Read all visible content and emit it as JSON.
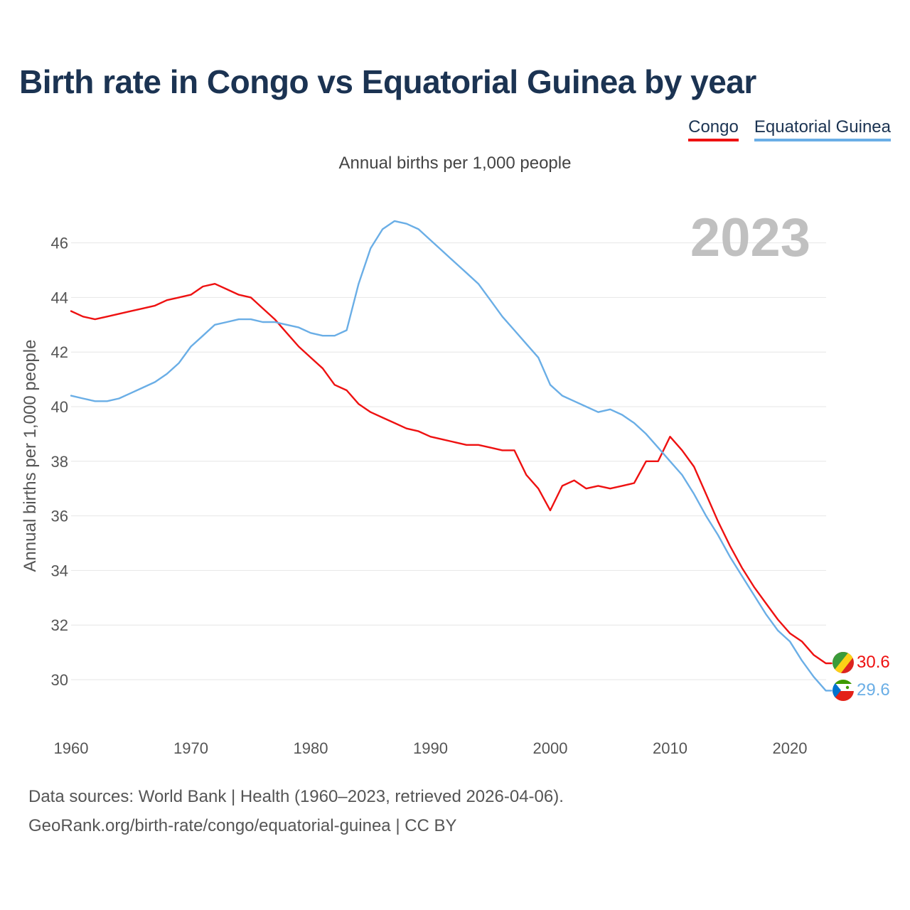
{
  "chart_data": {
    "type": "line",
    "title": "Birth rate in Congo vs Equatorial Guinea by year",
    "subtitle": "Annual births per 1,000 people",
    "ylabel": "Annual births per 1,000 people",
    "xlabel": "",
    "year_label": "2023",
    "xlim": [
      1960,
      2024
    ],
    "ylim": [
      29,
      47
    ],
    "x_ticks": [
      1960,
      1970,
      1980,
      1990,
      2000,
      2010,
      2020
    ],
    "y_ticks": [
      30,
      32,
      34,
      36,
      38,
      40,
      42,
      44,
      46
    ],
    "x": [
      1960,
      1961,
      1962,
      1963,
      1964,
      1965,
      1966,
      1967,
      1968,
      1969,
      1970,
      1971,
      1972,
      1973,
      1974,
      1975,
      1976,
      1977,
      1978,
      1979,
      1980,
      1981,
      1982,
      1983,
      1984,
      1985,
      1986,
      1987,
      1988,
      1989,
      1990,
      1991,
      1992,
      1993,
      1994,
      1995,
      1996,
      1997,
      1998,
      1999,
      2000,
      2001,
      2002,
      2003,
      2004,
      2005,
      2006,
      2007,
      2008,
      2009,
      2010,
      2011,
      2012,
      2013,
      2014,
      2015,
      2016,
      2017,
      2018,
      2019,
      2020,
      2021,
      2022,
      2023
    ],
    "series": [
      {
        "name": "Congo",
        "color": "#ee1111",
        "end_label": "30.6",
        "values": [
          43.5,
          43.3,
          43.2,
          43.3,
          43.4,
          43.5,
          43.6,
          43.7,
          43.9,
          44.0,
          44.1,
          44.4,
          44.5,
          44.3,
          44.1,
          44.0,
          43.6,
          43.2,
          42.7,
          42.2,
          41.8,
          41.4,
          40.8,
          40.6,
          40.1,
          39.8,
          39.6,
          39.4,
          39.2,
          39.1,
          38.9,
          38.8,
          38.7,
          38.6,
          38.6,
          38.5,
          38.4,
          38.4,
          37.5,
          37.0,
          36.2,
          37.1,
          37.3,
          37.0,
          37.1,
          37.0,
          37.1,
          37.2,
          38.0,
          38.0,
          38.9,
          38.4,
          37.8,
          36.8,
          35.8,
          34.9,
          34.1,
          33.4,
          32.8,
          32.2,
          31.7,
          31.4,
          30.9,
          30.6
        ]
      },
      {
        "name": "Equatorial Guinea",
        "color": "#6aaee6",
        "end_label": "29.6",
        "values": [
          40.4,
          40.3,
          40.2,
          40.2,
          40.3,
          40.5,
          40.7,
          40.9,
          41.2,
          41.6,
          42.2,
          42.6,
          43.0,
          43.1,
          43.2,
          43.2,
          43.1,
          43.1,
          43.0,
          42.9,
          42.7,
          42.6,
          42.6,
          42.8,
          44.5,
          45.8,
          46.5,
          46.8,
          46.7,
          46.5,
          46.1,
          45.7,
          45.3,
          44.9,
          44.5,
          43.9,
          43.3,
          42.8,
          42.3,
          41.8,
          40.8,
          40.4,
          40.2,
          40.0,
          39.8,
          39.9,
          39.7,
          39.4,
          39.0,
          38.5,
          38.0,
          37.5,
          36.8,
          36.0,
          35.3,
          34.5,
          33.8,
          33.1,
          32.4,
          31.8,
          31.4,
          30.7,
          30.1,
          29.6
        ]
      }
    ]
  },
  "legend": {
    "items": [
      {
        "label": "Congo",
        "color": "#ee1111"
      },
      {
        "label": "Equatorial Guinea",
        "color": "#6aaee6"
      }
    ]
  },
  "flags": {
    "congo": {
      "green": "#3a9b3a",
      "yellow": "#fbd116",
      "red": "#dc241f"
    },
    "equatorial_guinea": {
      "green": "#3e9a00",
      "white": "#ffffff",
      "red": "#e32118",
      "blue": "#0073ce"
    }
  },
  "footer": {
    "line1": "Data sources: World Bank | Health (1960–2023, retrieved 2026-04-06).",
    "line2": "GeoRank.org/birth-rate/congo/equatorial-guinea | CC BY"
  }
}
